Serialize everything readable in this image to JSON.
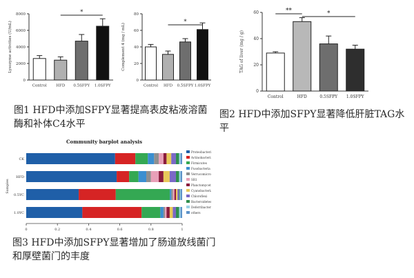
{
  "figures": [
    {
      "caption_line1": "图1 HFD中添加SFPY显著提高表皮粘液溶菌",
      "caption_line2": "酶和补体C4水平"
    },
    {
      "caption_line1": "图2 HFD中添加SFPY显著降低肝脏TAG水平"
    },
    {
      "caption_line1": "图3 HFD中添加SFPY显著增加了肠道放线菌门",
      "caption_line2": "和厚壁菌门的丰度"
    }
  ],
  "chart_data": [
    {
      "type": "bar",
      "ylabel": "Lysozyme activities (U/mL)",
      "categories": [
        "Control",
        "HFD",
        "0.5SFPY",
        "1.0SFPY"
      ],
      "values": [
        2600,
        2400,
        4700,
        6500
      ],
      "errors": [
        350,
        400,
        800,
        900
      ],
      "colors": [
        "#ffffff",
        "#b0b0b0",
        "#6e6e6e",
        "#111111"
      ],
      "ylim": [
        0,
        8000
      ],
      "yticks": [
        "0",
        "2000",
        "4000",
        "6000",
        "8000"
      ],
      "significance": [
        {
          "from": 1,
          "to": 3,
          "label": "*"
        }
      ]
    },
    {
      "type": "bar",
      "ylabel": "Complement 4 (mg / mL)",
      "categories": [
        "Control",
        "HFD",
        "0.5SFPY",
        "1.0SFPY"
      ],
      "values": [
        40,
        31,
        46,
        61
      ],
      "errors": [
        3,
        4,
        4,
        8
      ],
      "colors": [
        "#ffffff",
        "#b0b0b0",
        "#6e6e6e",
        "#111111"
      ],
      "ylim": [
        0,
        80
      ],
      "yticks": [
        "0",
        "20",
        "40",
        "60",
        "80"
      ],
      "significance": [
        {
          "from": 1,
          "to": 3,
          "label": "*"
        }
      ]
    },
    {
      "type": "bar",
      "ylabel": "TAG of liver (mg / g)",
      "categories": [
        "Control",
        "HFD",
        "0.5SFPY",
        "1.0SFPY"
      ],
      "values": [
        29,
        53,
        36,
        32
      ],
      "errors": [
        1,
        3,
        6,
        3
      ],
      "colors": [
        "#ffffff",
        "#b8b8b8",
        "#6e6e6e",
        "#2e2e2e"
      ],
      "ylim": [
        0,
        60
      ],
      "yticks": [
        "0",
        "20",
        "40",
        "60"
      ],
      "significance": [
        {
          "from": 0,
          "to": 1,
          "label": "**"
        },
        {
          "from": 1,
          "to": 3,
          "label": "*"
        }
      ]
    },
    {
      "type": "bar",
      "stacked": "horizontal",
      "title": "Community barplot analysis",
      "ylabel": "Samples",
      "categories": [
        "CK",
        "HFD",
        "0.5YC",
        "1.0YC"
      ],
      "xlim": [
        0,
        1
      ],
      "xticks": [
        "0",
        "0.2",
        "0.4",
        "0.6",
        "0.8",
        "1"
      ],
      "series": [
        {
          "name": "Proteobacteria",
          "color": "#1f5fa8",
          "values": [
            0.57,
            0.58,
            0.34,
            0.36
          ]
        },
        {
          "name": "Actinobacteria",
          "color": "#d62424",
          "values": [
            0.13,
            0.08,
            0.24,
            0.38
          ]
        },
        {
          "name": "Firmicutes",
          "color": "#34a853",
          "values": [
            0.08,
            0.06,
            0.35,
            0.12
          ]
        },
        {
          "name": "Fusobacteria",
          "color": "#3b8fd0",
          "values": [
            0.04,
            0.05,
            0.01,
            0.02
          ]
        },
        {
          "name": "Verrucomicrobia",
          "color": "#8f8f8f",
          "values": [
            0.03,
            0.03,
            0.01,
            0.01
          ]
        },
        {
          "name": "SR1",
          "color": "#e8a0b8",
          "values": [
            0.03,
            0.05,
            0.01,
            0.01
          ]
        },
        {
          "name": "Planctomycetes",
          "color": "#8b1c3c",
          "values": [
            0.02,
            0.03,
            0.01,
            0.02
          ]
        },
        {
          "name": "Cyanobacteria",
          "color": "#e8c95a",
          "values": [
            0.03,
            0.04,
            0.01,
            0.02
          ]
        },
        {
          "name": "Chloroflexi",
          "color": "#7b68c6",
          "values": [
            0.03,
            0.04,
            0.01,
            0.02
          ]
        },
        {
          "name": "Bacteroidetes",
          "color": "#2f8f4e",
          "values": [
            0.02,
            0.02,
            0.005,
            0.02
          ]
        },
        {
          "name": "Deferribacteres",
          "color": "#9ad2e6",
          "values": [
            0.01,
            0.01,
            0.005,
            0.01
          ]
        },
        {
          "name": "others",
          "color": "#5d93c9",
          "values": [
            0.01,
            0.01,
            0.01,
            0.01
          ]
        }
      ]
    }
  ]
}
